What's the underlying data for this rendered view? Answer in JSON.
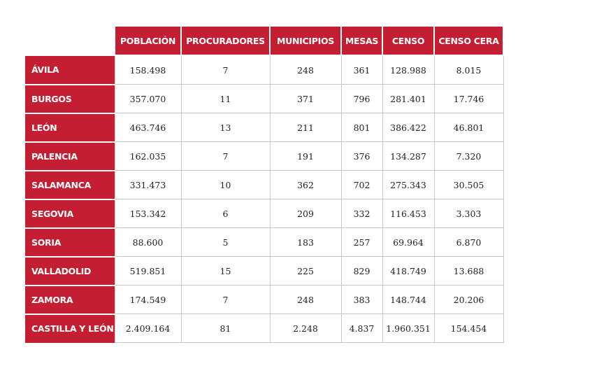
{
  "table": {
    "columns": [
      "POBLACIÓN",
      "PROCURADORES",
      "MUNICIPIOS",
      "MESAS",
      "CENSO",
      "CENSO CERA"
    ],
    "rows": [
      {
        "label": "ÁVILA",
        "values": [
          "158.498",
          "7",
          "248",
          "361",
          "128.988",
          "8.015"
        ]
      },
      {
        "label": "BURGOS",
        "values": [
          "357.070",
          "11",
          "371",
          "796",
          "281.401",
          "17.746"
        ]
      },
      {
        "label": "LEÓN",
        "values": [
          "463.746",
          "13",
          "211",
          "801",
          "386.422",
          "46.801"
        ]
      },
      {
        "label": "PALENCIA",
        "values": [
          "162.035",
          "7",
          "191",
          "376",
          "134.287",
          "7.320"
        ]
      },
      {
        "label": "SALAMANCA",
        "values": [
          "331.473",
          "10",
          "362",
          "702",
          "275.343",
          "30.505"
        ]
      },
      {
        "label": "SEGOVIA",
        "values": [
          "153.342",
          "6",
          "209",
          "332",
          "116.453",
          "3.303"
        ]
      },
      {
        "label": "SORIA",
        "values": [
          "88.600",
          "5",
          "183",
          "257",
          "69.964",
          "6.870"
        ]
      },
      {
        "label": "VALLADOLID",
        "values": [
          "519.851",
          "15",
          "225",
          "829",
          "418.749",
          "13.688"
        ]
      },
      {
        "label": "ZAMORA",
        "values": [
          "174.549",
          "7",
          "248",
          "383",
          "148.744",
          "20.206"
        ]
      },
      {
        "label": "CASTILLA Y LEÓN",
        "values": [
          "2.409.164",
          "81",
          "2.248",
          "4.837",
          "1.960.351",
          "154.454"
        ]
      }
    ]
  },
  "colors": {
    "header_red": "#c41e32",
    "grid": "#c8c8c8",
    "text": "#222222"
  }
}
